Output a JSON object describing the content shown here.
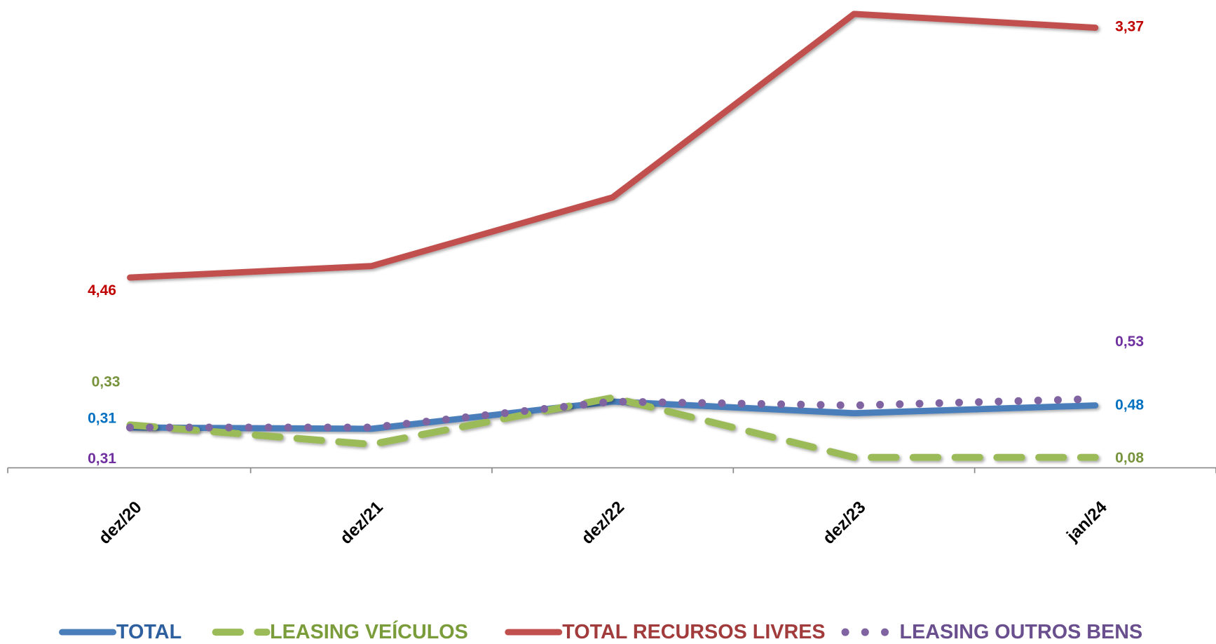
{
  "chart_data": {
    "type": "line",
    "categories": [
      "dez/20",
      "dez/21",
      "dez/22",
      "dez/23",
      "jan/24"
    ],
    "ylim": [
      0,
      3.6
    ],
    "y2lim": [
      5.29,
      3.25
    ],
    "series": [
      {
        "name": "TOTAL",
        "color": "#4a7ebb",
        "label_color": "#0070c0",
        "style": "solid",
        "values": [
          0.31,
          0.3,
          0.51,
          0.42,
          0.48
        ],
        "value_labels": [
          "0,31",
          null,
          null,
          null,
          "0,48"
        ]
      },
      {
        "name": "LEASING VEÍCULOS",
        "color": "#9bbb59",
        "label_color": "#77933c",
        "style": "dashed",
        "values": [
          0.33,
          0.18,
          0.54,
          0.08,
          0.08
        ],
        "value_labels": [
          "0,33",
          null,
          null,
          null,
          "0,08"
        ]
      },
      {
        "name": "TOTAL RECURSOS LIVRES",
        "color": "#c0504d",
        "label_color": "#c00000",
        "style": "solid",
        "axis": "y2",
        "values": [
          4.46,
          4.41,
          4.11,
          3.31,
          3.37
        ],
        "value_labels": [
          "4,46",
          null,
          null,
          null,
          "3,37"
        ]
      },
      {
        "name": "LEASING OUTROS BENS",
        "color": "#8064a2",
        "label_color": "#7030a0",
        "style": "dotted",
        "values": [
          0.31,
          0.31,
          0.51,
          0.48,
          0.53
        ],
        "value_labels": [
          "0,31",
          null,
          null,
          null,
          "0,53"
        ]
      }
    ],
    "legend": "bottom"
  }
}
